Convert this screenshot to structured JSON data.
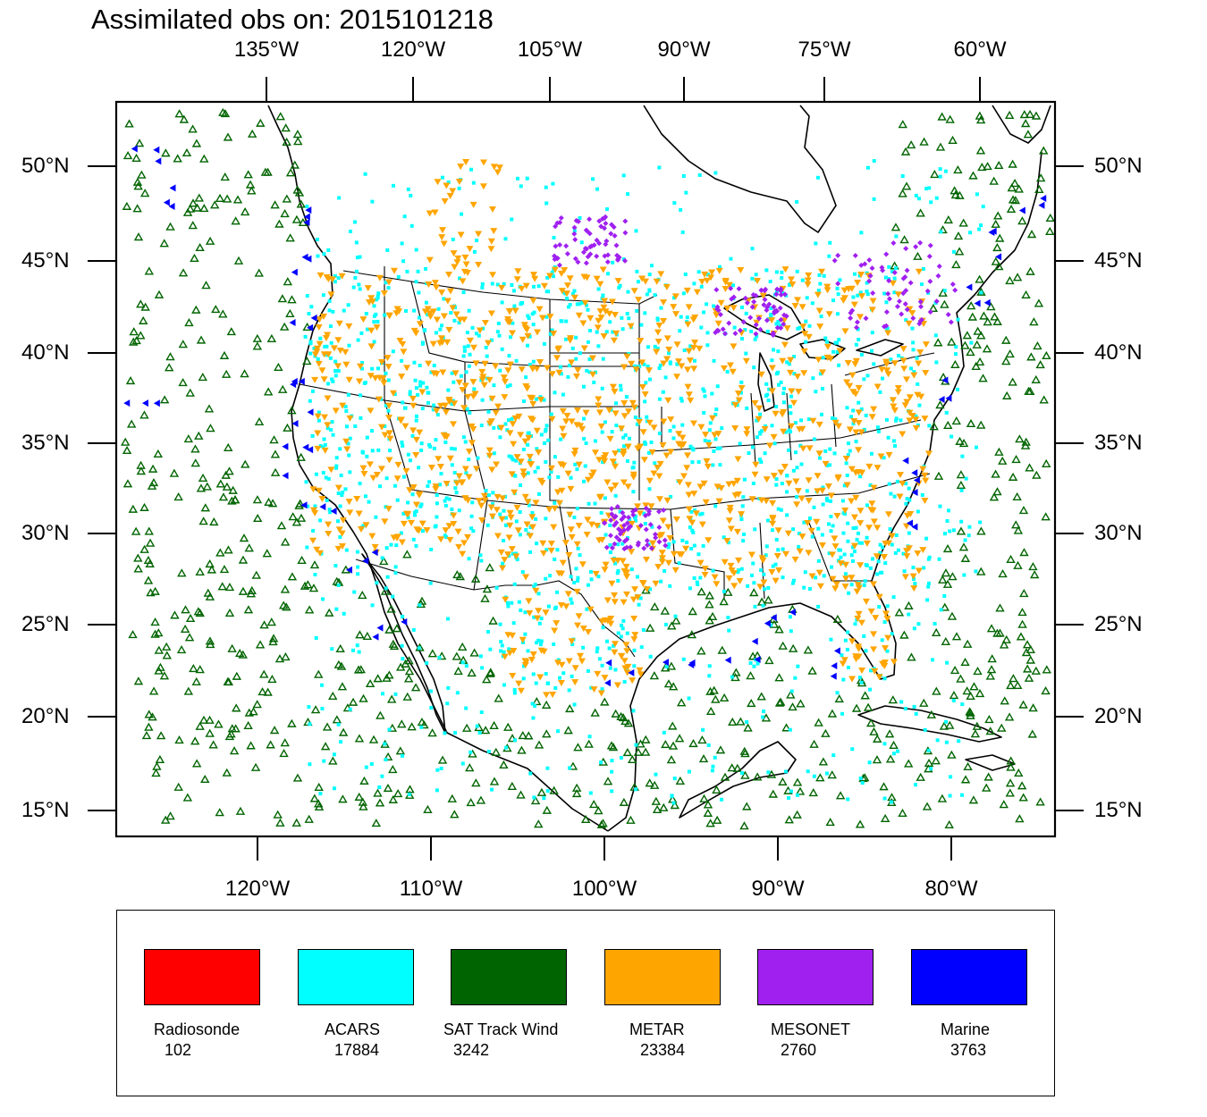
{
  "title": "Assimilated obs on: 2015101218",
  "map": {
    "top_axis_labels": [
      "135°W",
      "120°W",
      "105°W",
      "90°W",
      "75°W",
      "60°W"
    ],
    "bottom_axis_labels": [
      "120°W",
      "110°W",
      "100°W",
      "90°W",
      "80°W"
    ],
    "left_axis_labels": [
      "50°N",
      "45°N",
      "40°N",
      "35°N",
      "30°N",
      "25°N",
      "20°N",
      "15°N"
    ],
    "right_axis_labels": [
      "50°N",
      "45°N",
      "40°N",
      "35°N",
      "30°N",
      "25°N",
      "20°N",
      "15°N"
    ]
  },
  "legend": [
    {
      "name": "Radiosonde",
      "count": "102",
      "color": "#ff0000"
    },
    {
      "name": "ACARS",
      "count": "17884",
      "color": "#00ffff"
    },
    {
      "name": "SAT Track Wind",
      "count": "3242",
      "color": "#006400"
    },
    {
      "name": "METAR",
      "count": "23384",
      "color": "#ffa500"
    },
    {
      "name": "MESONET",
      "count": "2760",
      "color": "#a020f0"
    },
    {
      "name": "Marine",
      "count": "3763",
      "color": "#0000ff"
    }
  ],
  "colors": {
    "acars": "#00ffff",
    "sat_track_wind": "#006400",
    "metar": "#ffa500",
    "mesonet": "#a020f0",
    "marine": "#0000ff",
    "radiosonde": "#ff0000"
  }
}
